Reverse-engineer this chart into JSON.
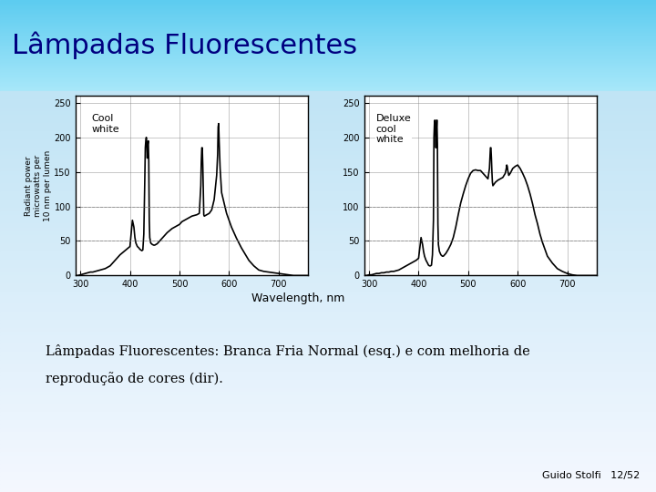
{
  "title": "Lâmpadas Fluorescentes",
  "title_fontsize": 22,
  "title_color": "#000080",
  "bg_top_color": "#5DCCF0",
  "bg_bottom_color": "#DDEEFF",
  "caption_line1": "Lâmpadas Fluorescentes: Branca Fria Normal (esq.) e com melhoria de",
  "caption_line2": "reprodução de cores (dir).",
  "caption_fontsize": 10.5,
  "footer": "Guido Stolfi   12/52",
  "footer_fontsize": 8,
  "ylabel": "Radiant power\nmicrowatts per\n10 nm per lumen",
  "xlabel": "Wavelength, nm",
  "label1": "Cool\nwhite",
  "label2": "Deluxe\ncool\nwhite",
  "xlim": [
    290,
    760
  ],
  "ylim": [
    0,
    260
  ],
  "yticks": [
    0,
    50,
    100,
    150,
    200,
    250
  ],
  "xticks": [
    300,
    400,
    500,
    600,
    700
  ],
  "cool_white_x": [
    290,
    295,
    300,
    305,
    310,
    315,
    320,
    325,
    330,
    335,
    340,
    345,
    350,
    355,
    360,
    365,
    370,
    375,
    380,
    385,
    390,
    395,
    400,
    405,
    408,
    410,
    412,
    415,
    418,
    420,
    422,
    424,
    426,
    428,
    430,
    431,
    432,
    433,
    434,
    435,
    436,
    437,
    438,
    439,
    440,
    442,
    445,
    448,
    450,
    455,
    460,
    465,
    470,
    475,
    480,
    485,
    490,
    495,
    500,
    505,
    510,
    515,
    520,
    525,
    530,
    535,
    540,
    543,
    544,
    545,
    546,
    547,
    548,
    549,
    550,
    555,
    560,
    565,
    570,
    575,
    577,
    578,
    579,
    580,
    582,
    585,
    590,
    595,
    600,
    605,
    610,
    615,
    620,
    625,
    630,
    635,
    640,
    645,
    650,
    655,
    660,
    670,
    680,
    690,
    700,
    710,
    720,
    730,
    740,
    750,
    760
  ],
  "cool_white_y": [
    0,
    0,
    1,
    2,
    3,
    4,
    5,
    5,
    6,
    7,
    8,
    9,
    10,
    12,
    14,
    18,
    22,
    26,
    30,
    33,
    36,
    39,
    42,
    80,
    70,
    55,
    47,
    42,
    40,
    38,
    37,
    36,
    37,
    60,
    140,
    185,
    195,
    200,
    190,
    170,
    190,
    195,
    165,
    80,
    55,
    47,
    45,
    44,
    44,
    46,
    50,
    54,
    58,
    62,
    65,
    68,
    70,
    72,
    74,
    78,
    80,
    82,
    84,
    86,
    87,
    88,
    90,
    130,
    165,
    185,
    185,
    160,
    125,
    88,
    86,
    88,
    90,
    95,
    110,
    145,
    175,
    215,
    220,
    195,
    155,
    120,
    105,
    90,
    80,
    70,
    62,
    54,
    47,
    40,
    34,
    28,
    22,
    18,
    14,
    11,
    8,
    6,
    5,
    4,
    3,
    2,
    1,
    0,
    0,
    0,
    0
  ],
  "deluxe_x": [
    290,
    295,
    300,
    305,
    310,
    315,
    320,
    325,
    330,
    335,
    340,
    345,
    350,
    355,
    360,
    365,
    370,
    375,
    380,
    385,
    390,
    395,
    400,
    405,
    408,
    410,
    412,
    415,
    418,
    420,
    422,
    424,
    426,
    428,
    430,
    431,
    432,
    433,
    434,
    435,
    436,
    437,
    438,
    439,
    440,
    442,
    445,
    448,
    450,
    455,
    460,
    465,
    470,
    475,
    480,
    485,
    490,
    495,
    500,
    505,
    510,
    515,
    520,
    525,
    530,
    535,
    540,
    543,
    544,
    545,
    546,
    547,
    548,
    549,
    550,
    555,
    560,
    565,
    570,
    575,
    577,
    578,
    579,
    580,
    582,
    585,
    590,
    595,
    600,
    605,
    610,
    615,
    620,
    625,
    630,
    635,
    640,
    645,
    650,
    655,
    660,
    670,
    680,
    690,
    700,
    710,
    720,
    730,
    740,
    750,
    760
  ],
  "deluxe_y": [
    0,
    0,
    1,
    1,
    2,
    3,
    3,
    4,
    4,
    5,
    5,
    6,
    6,
    7,
    8,
    10,
    12,
    14,
    16,
    18,
    20,
    22,
    25,
    55,
    45,
    35,
    28,
    22,
    18,
    15,
    14,
    14,
    15,
    30,
    80,
    200,
    220,
    225,
    210,
    185,
    210,
    225,
    190,
    75,
    45,
    35,
    30,
    28,
    28,
    32,
    38,
    45,
    55,
    70,
    88,
    105,
    118,
    130,
    140,
    148,
    152,
    153,
    152,
    152,
    148,
    144,
    140,
    155,
    170,
    185,
    185,
    170,
    150,
    135,
    130,
    135,
    138,
    140,
    142,
    148,
    155,
    160,
    158,
    152,
    145,
    148,
    155,
    158,
    160,
    155,
    148,
    140,
    130,
    118,
    104,
    88,
    75,
    60,
    48,
    38,
    28,
    18,
    10,
    6,
    3,
    1,
    0,
    0,
    0,
    0,
    0
  ]
}
